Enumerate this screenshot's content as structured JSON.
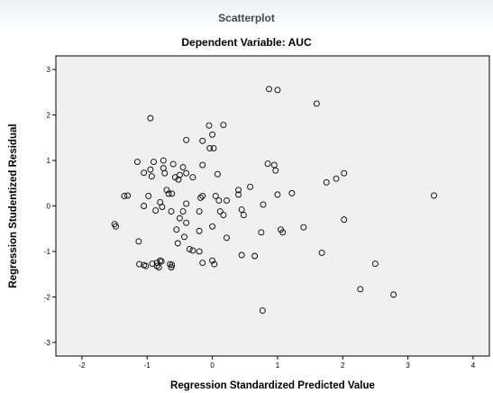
{
  "figure_title": "Scatterplot",
  "chart_data": {
    "type": "scatter",
    "title": "Dependent Variable: AUC",
    "xlabel": "Regression Standardized Predicted Value",
    "ylabel": "Regression Studentized Residual",
    "xlim": [
      -2.4,
      4.25
    ],
    "ylim": [
      -3.3,
      3.3
    ],
    "x_ticks": [
      -2,
      -1,
      0,
      1,
      2,
      3,
      4
    ],
    "y_ticks": [
      -3,
      -2,
      -1,
      0,
      1,
      2,
      3
    ],
    "grid": false,
    "plot_background": "#f0f0f0",
    "marker_color": "#000000",
    "points": [
      [
        0.87,
        2.57
      ],
      [
        1.0,
        2.55
      ],
      [
        1.6,
        2.25
      ],
      [
        -0.95,
        1.93
      ],
      [
        -0.05,
        1.77
      ],
      [
        0.17,
        1.78
      ],
      [
        -0.4,
        1.45
      ],
      [
        -0.15,
        1.43
      ],
      [
        0.0,
        1.57
      ],
      [
        -0.04,
        1.27
      ],
      [
        0.02,
        1.27
      ],
      [
        -1.15,
        0.97
      ],
      [
        -0.9,
        0.97
      ],
      [
        -0.75,
        1.0
      ],
      [
        -0.6,
        0.92
      ],
      [
        -0.75,
        0.83
      ],
      [
        -0.45,
        0.85
      ],
      [
        -0.15,
        0.9
      ],
      [
        0.85,
        0.93
      ],
      [
        -1.05,
        0.73
      ],
      [
        -0.95,
        0.8
      ],
      [
        -0.73,
        0.72
      ],
      [
        -0.5,
        0.68
      ],
      [
        -0.4,
        0.72
      ],
      [
        0.08,
        0.7
      ],
      [
        0.97,
        0.78
      ],
      [
        0.95,
        0.9
      ],
      [
        -0.93,
        0.65
      ],
      [
        -0.57,
        0.63
      ],
      [
        -0.52,
        0.58
      ],
      [
        -0.3,
        0.63
      ],
      [
        -0.7,
        0.35
      ],
      [
        -0.67,
        0.27
      ],
      [
        -0.62,
        0.27
      ],
      [
        -0.15,
        0.22
      ],
      [
        -0.18,
        0.18
      ],
      [
        0.05,
        0.22
      ],
      [
        0.1,
        0.12
      ],
      [
        0.22,
        0.12
      ],
      [
        0.4,
        0.25
      ],
      [
        0.58,
        0.42
      ],
      [
        0.4,
        0.35
      ],
      [
        1.0,
        0.25
      ],
      [
        1.22,
        0.28
      ],
      [
        3.4,
        0.23
      ],
      [
        1.75,
        0.52
      ],
      [
        1.9,
        0.6
      ],
      [
        2.02,
        0.72
      ],
      [
        -1.3,
        0.23
      ],
      [
        -1.35,
        0.22
      ],
      [
        -0.98,
        0.22
      ],
      [
        -0.8,
        0.08
      ],
      [
        -0.77,
        -0.02
      ],
      [
        -0.87,
        -0.1
      ],
      [
        -1.05,
        0.0
      ],
      [
        -0.63,
        -0.12
      ],
      [
        -0.4,
        0.05
      ],
      [
        -0.45,
        -0.12
      ],
      [
        -0.2,
        -0.12
      ],
      [
        0.12,
        -0.12
      ],
      [
        0.17,
        -0.2
      ],
      [
        0.45,
        -0.08
      ],
      [
        0.48,
        -0.2
      ],
      [
        0.78,
        0.03
      ],
      [
        -1.5,
        -0.4
      ],
      [
        -1.48,
        -0.45
      ],
      [
        -0.5,
        -0.27
      ],
      [
        -0.4,
        -0.37
      ],
      [
        -0.55,
        -0.52
      ],
      [
        -0.2,
        -0.55
      ],
      [
        0.0,
        -0.45
      ],
      [
        0.22,
        -0.7
      ],
      [
        0.75,
        -0.58
      ],
      [
        1.05,
        -0.52
      ],
      [
        1.08,
        -0.58
      ],
      [
        1.4,
        -0.47
      ],
      [
        2.02,
        -0.3
      ],
      [
        -1.13,
        -0.78
      ],
      [
        -0.53,
        -0.82
      ],
      [
        -0.43,
        -0.68
      ],
      [
        -0.35,
        -0.95
      ],
      [
        -0.3,
        -0.98
      ],
      [
        -0.2,
        -1.0
      ],
      [
        0.45,
        -1.08
      ],
      [
        0.65,
        -1.1
      ],
      [
        1.68,
        -1.03
      ],
      [
        2.5,
        -1.27
      ],
      [
        -1.12,
        -1.28
      ],
      [
        -1.05,
        -1.3
      ],
      [
        -1.02,
        -1.32
      ],
      [
        -0.85,
        -1.25
      ],
      [
        -0.8,
        -1.2
      ],
      [
        -0.78,
        -1.22
      ],
      [
        -0.92,
        -1.27
      ],
      [
        -0.65,
        -1.28
      ],
      [
        -0.62,
        -1.3
      ],
      [
        -0.63,
        -1.35
      ],
      [
        -0.85,
        -1.32
      ],
      [
        -0.82,
        -1.35
      ],
      [
        -0.15,
        -1.25
      ],
      [
        0.0,
        -1.2
      ],
      [
        0.03,
        -1.28
      ],
      [
        2.27,
        -1.83
      ],
      [
        2.78,
        -1.95
      ],
      [
        0.77,
        -2.3
      ]
    ]
  }
}
